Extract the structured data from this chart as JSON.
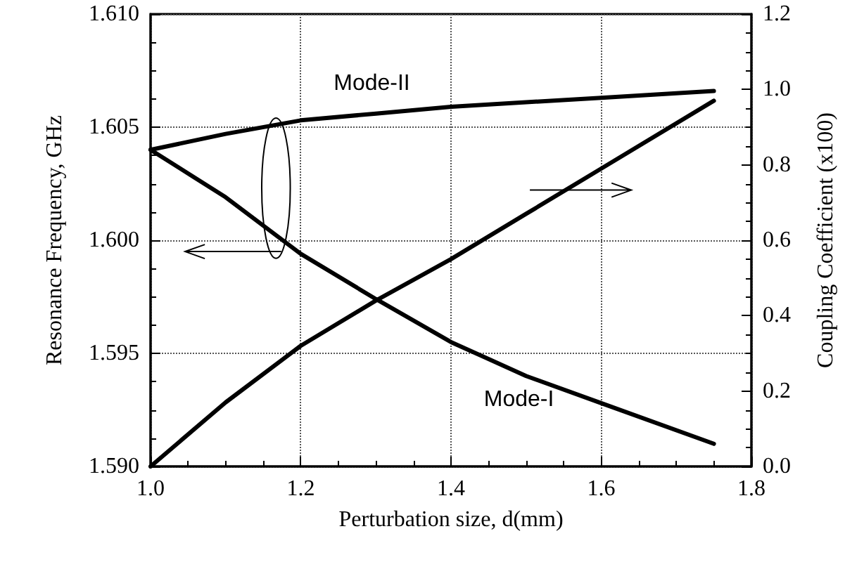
{
  "chart_data": {
    "type": "line",
    "xlabel": "Perturbation size, d(mm)",
    "ylabel": "Resonance Frequency, GHz",
    "y2label": "Coupling Coefficient (x100)",
    "x": [
      1.0,
      1.1,
      1.2,
      1.3,
      1.4,
      1.5,
      1.6,
      1.75
    ],
    "series": [
      {
        "name": "Mode-II",
        "color": "#000000",
        "values": [
          1.604,
          1.6047,
          1.6053,
          1.6056,
          1.6059,
          1.6061,
          1.6063,
          1.6066
        ]
      },
      {
        "name": "Mode-I",
        "color": "#000000",
        "values": [
          1.604,
          1.6019,
          1.5994,
          1.5974,
          1.5955,
          1.594,
          1.5928,
          1.591
        ]
      },
      {
        "color": "#000000",
        "axis": "y2",
        "values": [
          0.0,
          0.17,
          0.32,
          0.44,
          0.55,
          0.67,
          0.79,
          0.97
        ]
      }
    ],
    "xlim": [
      1.0,
      1.8
    ],
    "xticks": [
      {
        "value": 1.0,
        "label": "1.0"
      },
      1.2,
      1.4,
      1.6,
      1.8
    ],
    "ylim": [
      1.59,
      1.61
    ],
    "yticks": [
      {
        "value": 1.59,
        "label": "1.590"
      },
      {
        "value": 1.595,
        "label": "1.595"
      },
      {
        "value": 1.6,
        "label": "1.600"
      },
      {
        "value": 1.605,
        "label": "1.605"
      },
      {
        "value": 1.61,
        "label": "1.610"
      }
    ],
    "y2lim": [
      0,
      1.2
    ],
    "y2ticks": [
      {
        "value": 0,
        "label": "0.0"
      },
      0.2,
      0.4,
      0.6,
      0.8,
      {
        "value": 1.0,
        "label": "1.0"
      },
      1.2
    ],
    "grid": true,
    "legend": false,
    "marker": "none",
    "line_style": "solid"
  }
}
